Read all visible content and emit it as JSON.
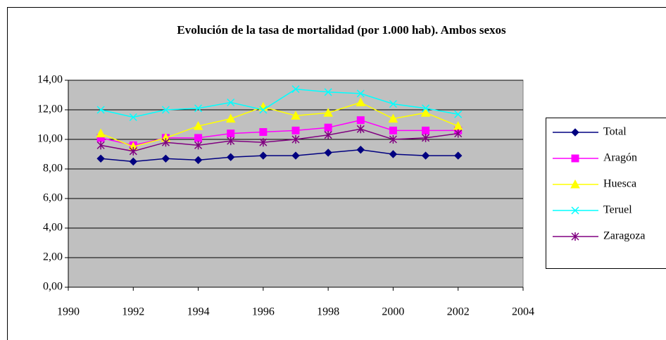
{
  "chart_data": {
    "type": "line",
    "title": "Evolución de la tasa de mortalidad (por 1.000 hab). Ambos sexos",
    "x": [
      1991,
      1992,
      1993,
      1994,
      1995,
      1996,
      1997,
      1998,
      1999,
      2000,
      2001,
      2002
    ],
    "series": [
      {
        "name": "Total",
        "color": "#000080",
        "marker": "diamond",
        "values": [
          8.7,
          8.5,
          8.7,
          8.6,
          8.8,
          8.9,
          8.9,
          9.1,
          9.3,
          9.0,
          8.9,
          8.9
        ]
      },
      {
        "name": "Aragón",
        "color": "#ff00ff",
        "marker": "square",
        "values": [
          10.1,
          9.6,
          10.1,
          10.1,
          10.4,
          10.5,
          10.6,
          10.8,
          11.3,
          10.6,
          10.6,
          10.6
        ]
      },
      {
        "name": "Huesca",
        "color": "#ffff00",
        "marker": "triangle",
        "values": [
          10.4,
          9.5,
          10.1,
          10.9,
          11.4,
          12.2,
          11.6,
          11.8,
          12.5,
          11.4,
          11.8,
          10.9
        ]
      },
      {
        "name": "Teruel",
        "color": "#00ffff",
        "marker": "x",
        "values": [
          12.0,
          11.5,
          12.0,
          12.1,
          12.5,
          12.0,
          13.4,
          13.2,
          13.1,
          12.4,
          12.1,
          11.7
        ]
      },
      {
        "name": "Zaragoza",
        "color": "#800080",
        "marker": "star",
        "values": [
          9.6,
          9.2,
          9.8,
          9.6,
          9.9,
          9.8,
          10.0,
          10.3,
          10.7,
          10.0,
          10.1,
          10.4
        ]
      }
    ],
    "xlim": [
      1990,
      2004
    ],
    "xticks": [
      1990,
      1992,
      1994,
      1996,
      1998,
      2000,
      2002,
      2004
    ],
    "ylim": [
      0,
      14
    ],
    "yticks": [
      {
        "value": 0,
        "label": "0,00"
      },
      {
        "value": 2,
        "label": "2,00"
      },
      {
        "value": 4,
        "label": "4,00"
      },
      {
        "value": 6,
        "label": "6,00"
      },
      {
        "value": 8,
        "label": "8,00"
      },
      {
        "value": 10,
        "label": "10,00"
      },
      {
        "value": 12,
        "label": "12,00"
      },
      {
        "value": 14,
        "label": "14,00"
      }
    ],
    "grid": true,
    "legend": "right"
  }
}
